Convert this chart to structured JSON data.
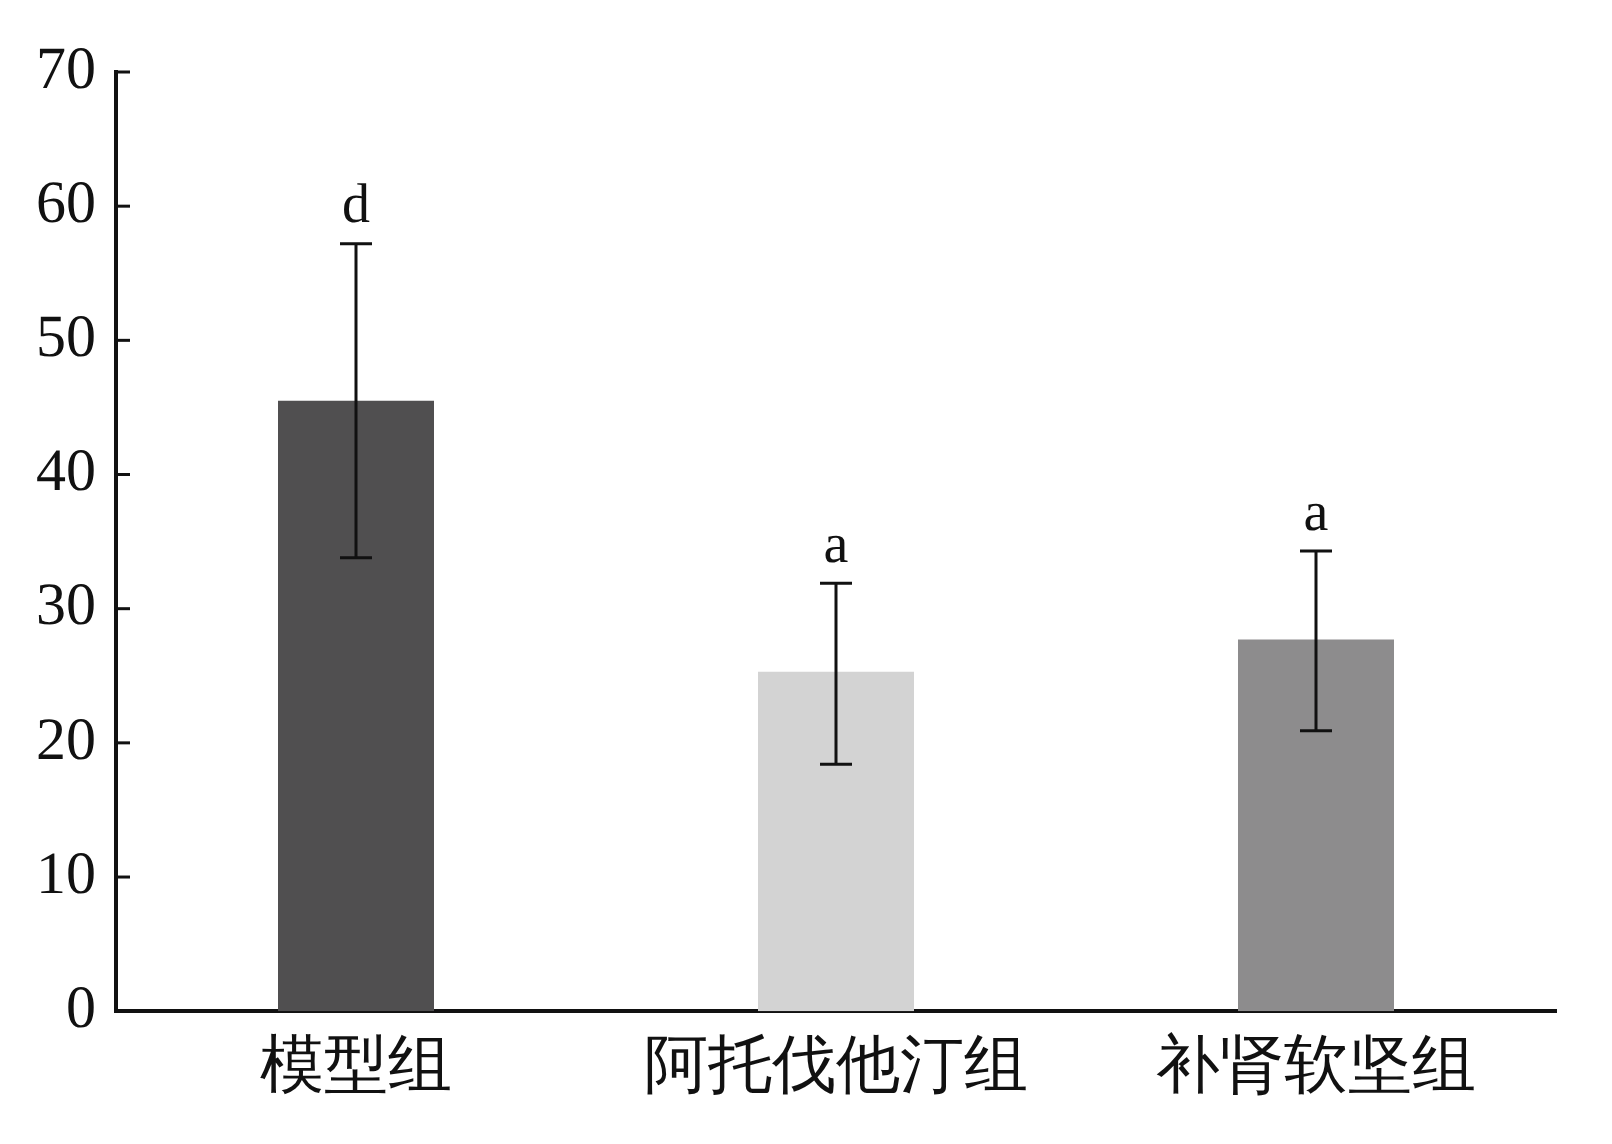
{
  "chart_data": {
    "type": "bar",
    "categories": [
      "模型组",
      "阿托伐他汀组",
      "补肾软坚组"
    ],
    "values": [
      45.5,
      25.3,
      27.7
    ],
    "colors": [
      "#504f50",
      "#d3d3d3",
      "#8d8c8d"
    ],
    "errors": [
      [
        33.8,
        57.2
      ],
      [
        18.4,
        31.9
      ],
      [
        20.9,
        34.3
      ]
    ],
    "annotations": [
      {
        "text": "d",
        "x": "模型组",
        "y": 57.2
      },
      {
        "text": "a",
        "x": "阿托伐他汀组",
        "y": 31.9
      },
      {
        "text": "a",
        "x": "补肾软坚组",
        "y": 34.3
      }
    ],
    "ylim": [
      0,
      70
    ],
    "yticks": [
      0,
      10,
      20,
      30,
      40,
      50,
      60,
      70
    ],
    "grid": false,
    "legend": false
  }
}
